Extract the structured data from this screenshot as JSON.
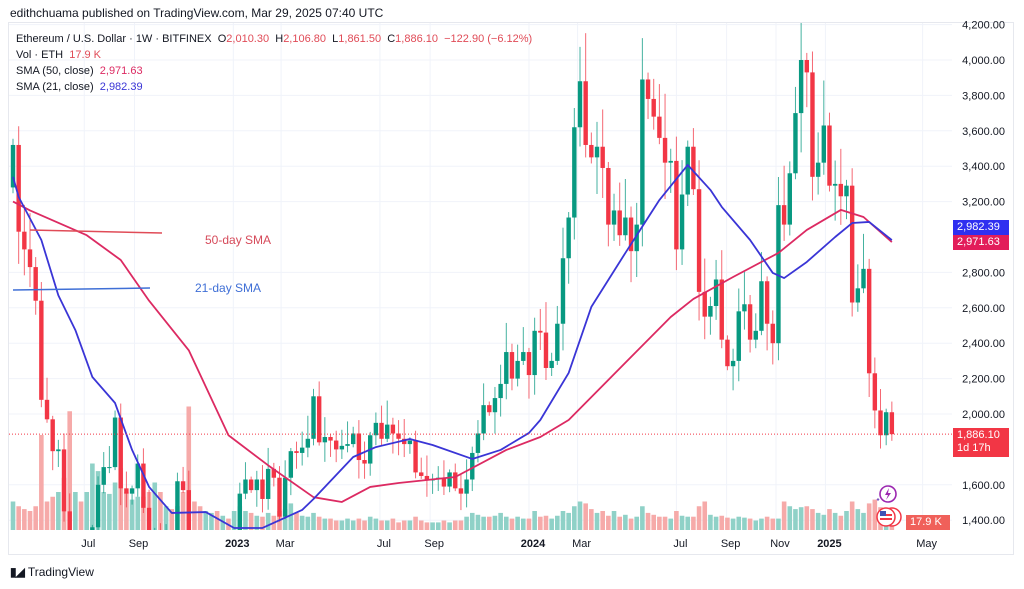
{
  "publisher": "edithchuama published on TradingView.com, Mar 29, 2025 07:40 UTC",
  "legend": {
    "symbol": "Ethereum / U.S. Dollar · 1W · BITFINEX",
    "open_label": "O",
    "open": "2,010.30",
    "high_label": "H",
    "high": "2,106.80",
    "low_label": "L",
    "low": "1,861.50",
    "close_label": "C",
    "close": "1,886.10",
    "change": "−122.90 (−6.12%)",
    "vol_label": "Vol · ETH",
    "vol": "17.9 K",
    "sma50_label": "SMA (50, close)",
    "sma50": "2,971.63",
    "sma21_label": "SMA (21, close)",
    "sma21": "2,982.39"
  },
  "annotations": {
    "sma50_text": "50-day SMA",
    "sma21_text": "21-day SMA"
  },
  "tags": {
    "sma21": "2,982.39",
    "sma50": "2,971.63",
    "price": "1,886.10",
    "countdown": "1d 17h",
    "volume": "17.9 K"
  },
  "footer": {
    "brand": "TradingView",
    "logo": "17"
  },
  "icons": [
    "lightning-icon",
    "us-flag-icon"
  ],
  "colors": {
    "up": "#089981",
    "down": "#f23645",
    "up_vol": "#8fd1c7",
    "down_vol": "#f6aaa9",
    "sma21": "#3a35d6",
    "sma50": "#dc2a62",
    "sma21_tag": "#2f2ff0",
    "sma50_tag": "#e21d5a",
    "price_tag": "#f23645"
  },
  "chart_data": {
    "type": "candlestick",
    "timeframe": "1W",
    "start_week": "2022-04-04",
    "ylim": [
      1345,
      4200
    ],
    "y_ticks": [
      "4,200.00",
      "4,000.00",
      "3,800.00",
      "3,600.00",
      "3,400.00",
      "3,200.00",
      "2,800.00",
      "2,600.00",
      "2,400.00",
      "2,200.00",
      "2,000.00",
      "1,600.00",
      "1,400.00"
    ],
    "y_tick_values": [
      4200,
      4000,
      3800,
      3600,
      3400,
      3200,
      2800,
      2600,
      2400,
      2200,
      2000,
      1600,
      1400
    ],
    "x_ticks": [
      {
        "label": "Jul",
        "date": "2022-07-01"
      },
      {
        "label": "Sep",
        "date": "2022-09-01"
      },
      {
        "label": "2023",
        "date": "2023-01-01"
      },
      {
        "label": "Mar",
        "date": "2023-03-01"
      },
      {
        "label": "Jul",
        "date": "2023-07-01"
      },
      {
        "label": "Sep",
        "date": "2023-09-01"
      },
      {
        "label": "2024",
        "date": "2024-01-01"
      },
      {
        "label": "Mar",
        "date": "2024-03-01"
      },
      {
        "label": "Jul",
        "date": "2024-07-01"
      },
      {
        "label": "Sep",
        "date": "2024-09-01"
      },
      {
        "label": "Nov",
        "date": "2024-11-01"
      },
      {
        "label": "2025",
        "date": "2025-01-01"
      },
      {
        "label": "May",
        "date": "2025-05-01"
      }
    ],
    "first_open": 3280,
    "closes": [
      3520,
      3030,
      2930,
      2830,
      2640,
      2080,
      1970,
      1790,
      1800,
      1450,
      1130,
      1240,
      1070,
      1160,
      1360,
      1600,
      1700,
      1700,
      1980,
      1580,
      1550,
      1580,
      1720,
      1470,
      1320,
      1330,
      1290,
      1300,
      1290,
      1620,
      1570,
      1220,
      1210,
      1200,
      1260,
      1270,
      1180,
      1220,
      1200,
      1320,
      1550,
      1630,
      1570,
      1630,
      1520,
      1690,
      1640,
      1420,
      1640,
      1790,
      1780,
      1810,
      1860,
      2100,
      1840,
      1870,
      1850,
      1800,
      1820,
      1830,
      1890,
      1740,
      1720,
      1880,
      1950,
      1860,
      1940,
      1890,
      1860,
      1830,
      1850,
      1670,
      1650,
      1630,
      1630,
      1640,
      1590,
      1670,
      1580,
      1550,
      1630,
      1780,
      1890,
      2050,
      2010,
      2090,
      2170,
      2350,
      2200,
      2300,
      2350,
      2220,
      2470,
      2460,
      2260,
      2300,
      2510,
      2880,
      3110,
      3620,
      3880,
      3520,
      3450,
      3510,
      3390,
      3070,
      3150,
      3010,
      3110,
      2920,
      3070,
      3890,
      3780,
      3680,
      3560,
      3420,
      3430,
      2930,
      3240,
      3510,
      3270,
      2690,
      2550,
      2610,
      2760,
      2420,
      2270,
      2300,
      2580,
      2620,
      2420,
      2470,
      2750,
      2510,
      2400,
      3180,
      3070,
      3360,
      3700,
      4000,
      3930,
      3340,
      3420,
      3630,
      3290,
      3300,
      3230,
      3290,
      2630,
      2710,
      2820,
      2230,
      2020,
      1880,
      2010,
      1886.1
    ],
    "volumes_k": [
      30,
      25,
      22,
      20,
      25,
      100,
      30,
      35,
      40,
      55,
      125,
      40,
      30,
      40,
      70,
      62,
      40,
      38,
      50,
      65,
      40,
      32,
      35,
      35,
      40,
      50,
      40,
      25,
      22,
      25,
      40,
      130,
      30,
      25,
      20,
      18,
      20,
      15,
      12,
      20,
      25,
      20,
      18,
      15,
      14,
      18,
      15,
      20,
      22,
      28,
      18,
      15,
      14,
      18,
      14,
      12,
      12,
      10,
      10,
      12,
      10,
      12,
      10,
      14,
      12,
      10,
      10,
      12,
      8,
      10,
      10,
      14,
      10,
      8,
      8,
      8,
      10,
      8,
      10,
      10,
      14,
      18,
      16,
      14,
      14,
      15,
      18,
      14,
      12,
      14,
      12,
      12,
      20,
      14,
      15,
      12,
      15,
      20,
      18,
      25,
      30,
      28,
      22,
      18,
      20,
      15,
      20,
      14,
      16,
      12,
      14,
      25,
      18,
      16,
      14,
      14,
      12,
      20,
      15,
      14,
      14,
      25,
      30,
      16,
      14,
      15,
      13,
      12,
      14,
      13,
      12,
      10,
      12,
      14,
      12,
      12,
      30,
      25,
      22,
      24,
      25,
      22,
      18,
      16,
      22,
      18,
      15,
      20,
      30,
      22,
      18,
      28,
      32,
      24,
      20,
      17.9
    ],
    "sma50": [
      [
        "2022-04-04",
        3200
      ],
      [
        "2022-04-25",
        3150
      ],
      [
        "2022-07-04",
        3010
      ],
      [
        "2022-08-15",
        2870
      ],
      [
        "2022-09-19",
        2640
      ],
      [
        "2022-11-07",
        2360
      ],
      [
        "2022-12-26",
        1880
      ],
      [
        "2023-02-13",
        1710
      ],
      [
        "2023-04-10",
        1530
      ],
      [
        "2023-05-15",
        1503
      ],
      [
        "2023-06-19",
        1588
      ],
      [
        "2023-07-24",
        1610
      ],
      [
        "2023-10-02",
        1644
      ],
      [
        "2023-12-04",
        1797
      ],
      [
        "2024-01-15",
        1870
      ],
      [
        "2024-02-19",
        1966
      ],
      [
        "2024-05-06",
        2322
      ],
      [
        "2024-06-24",
        2548
      ],
      [
        "2024-07-22",
        2650
      ],
      [
        "2024-09-09",
        2774
      ],
      [
        "2024-11-04",
        2910
      ],
      [
        "2024-12-09",
        3040
      ],
      [
        "2025-01-20",
        3153
      ],
      [
        "2025-02-17",
        3113
      ],
      [
        "2025-03-24",
        2971.63
      ]
    ],
    "sma21": [
      [
        "2022-04-04",
        3340
      ],
      [
        "2022-04-11",
        3226
      ],
      [
        "2022-05-09",
        2983
      ],
      [
        "2022-05-30",
        2670
      ],
      [
        "2022-06-20",
        2474
      ],
      [
        "2022-07-11",
        2209
      ],
      [
        "2022-08-08",
        2062
      ],
      [
        "2022-08-29",
        1797
      ],
      [
        "2022-09-19",
        1588
      ],
      [
        "2022-10-17",
        1441
      ],
      [
        "2022-11-28",
        1446
      ],
      [
        "2023-01-02",
        1356
      ],
      [
        "2023-02-06",
        1356
      ],
      [
        "2023-03-27",
        1458
      ],
      [
        "2023-04-10",
        1520
      ],
      [
        "2023-05-29",
        1757
      ],
      [
        "2023-06-26",
        1813
      ],
      [
        "2023-08-07",
        1859
      ],
      [
        "2023-09-04",
        1825
      ],
      [
        "2023-10-23",
        1746
      ],
      [
        "2023-11-27",
        1797
      ],
      [
        "2024-01-01",
        1893
      ],
      [
        "2024-01-15",
        1966
      ],
      [
        "2024-02-19",
        2232
      ],
      [
        "2024-03-18",
        2605
      ],
      [
        "2024-04-29",
        2910
      ],
      [
        "2024-06-10",
        3209
      ],
      [
        "2024-07-15",
        3407
      ],
      [
        "2024-08-12",
        3266
      ],
      [
        "2024-08-26",
        3170
      ],
      [
        "2024-09-30",
        2983
      ],
      [
        "2024-10-28",
        2797
      ],
      [
        "2024-11-11",
        2768
      ],
      [
        "2024-12-09",
        2859
      ],
      [
        "2025-01-13",
        3000
      ],
      [
        "2025-02-03",
        3079
      ],
      [
        "2025-02-24",
        3085
      ],
      [
        "2025-03-24",
        2982.39
      ]
    ],
    "annotation_lines": {
      "sma50_level": 3010,
      "sma21_level": 2715
    },
    "last_price": 1886.1
  }
}
